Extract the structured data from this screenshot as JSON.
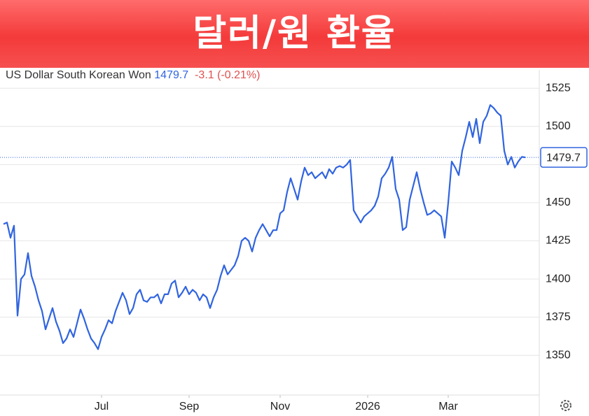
{
  "chart_data": {
    "type": "line",
    "title": "달러/원 환율",
    "series": [
      {
        "name": "US Dollar South Korean Won",
        "color": "#3064e0",
        "values": [
          1436,
          1437,
          1427,
          1435,
          1376,
          1400,
          1403,
          1417,
          1402,
          1395,
          1386,
          1379,
          1367,
          1374,
          1381,
          1372,
          1366,
          1358,
          1361,
          1367,
          1362,
          1371,
          1380,
          1374,
          1367,
          1361,
          1358,
          1354,
          1362,
          1367,
          1373,
          1371,
          1379,
          1385,
          1391,
          1386,
          1377,
          1381,
          1390,
          1393,
          1386,
          1385,
          1388,
          1388,
          1390,
          1384,
          1390,
          1390,
          1397,
          1399,
          1388,
          1391,
          1395,
          1390,
          1393,
          1391,
          1386,
          1390,
          1388,
          1381,
          1388,
          1393,
          1402,
          1409,
          1403,
          1406,
          1409,
          1415,
          1425,
          1427,
          1425,
          1418,
          1427,
          1432,
          1436,
          1432,
          1428,
          1432,
          1432,
          1443,
          1445,
          1457,
          1466,
          1459,
          1452,
          1464,
          1473,
          1468,
          1470,
          1466,
          1468,
          1470,
          1466,
          1472,
          1469,
          1473,
          1474,
          1473,
          1475,
          1478,
          1445,
          1441,
          1437,
          1441,
          1443,
          1445,
          1448,
          1454,
          1466,
          1469,
          1473,
          1480,
          1459,
          1452,
          1432,
          1434,
          1452,
          1461,
          1470,
          1459,
          1450,
          1442,
          1443,
          1445,
          1443,
          1441,
          1427,
          1450,
          1477,
          1473,
          1468,
          1484,
          1493,
          1503,
          1493,
          1505,
          1489,
          1503,
          1507,
          1514,
          1512,
          1509,
          1507,
          1484,
          1475,
          1480,
          1473,
          1477,
          1480,
          1479.7
        ]
      }
    ],
    "last_price": 1479.7,
    "change_text": "-3.1 (-0.21%)",
    "xlim": [
      0,
      153
    ],
    "xticks": [
      {
        "value": 28,
        "label": "Jul"
      },
      {
        "value": 53,
        "label": "Sep"
      },
      {
        "value": 79,
        "label": "Nov"
      },
      {
        "value": 104,
        "label": "2026"
      },
      {
        "value": 127,
        "label": "Mar"
      }
    ],
    "ylim": [
      1324,
      1537
    ],
    "yticks": [
      1350,
      1375,
      1400,
      1425,
      1450,
      1475,
      1500,
      1525
    ],
    "grid": true
  }
}
